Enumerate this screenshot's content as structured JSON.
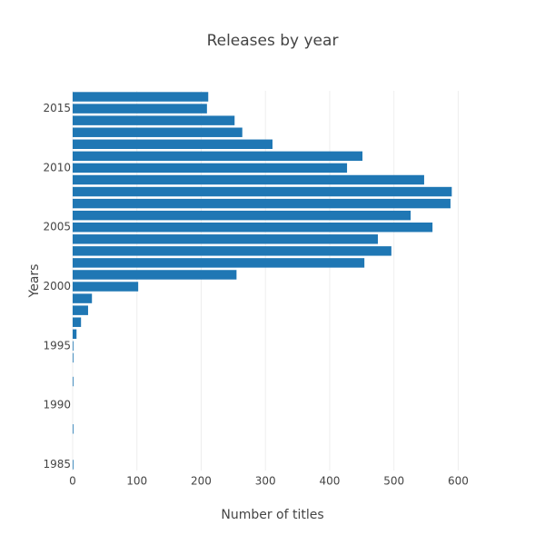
{
  "chart_data": {
    "type": "bar",
    "orientation": "horizontal",
    "title": "Releases by year",
    "x_label": "Number of titles",
    "y_label": "Years",
    "y": [
      1985,
      1988,
      1992,
      1994,
      1995,
      1996,
      1997,
      1998,
      1999,
      2000,
      2001,
      2002,
      2003,
      2004,
      2005,
      2006,
      2007,
      2008,
      2009,
      2010,
      2011,
      2012,
      2013,
      2014,
      2015,
      2016
    ],
    "values": [
      1,
      1,
      1,
      1,
      1,
      6,
      13,
      24,
      30,
      102,
      255,
      454,
      496,
      475,
      560,
      526,
      588,
      590,
      547,
      427,
      451,
      311,
      264,
      252,
      209,
      211
    ],
    "color": "#1f77b4",
    "xlim": [
      0,
      622
    ],
    "xticks": [
      0,
      100,
      200,
      300,
      400,
      500,
      600
    ],
    "ylim": [
      1984.5,
      2016.5
    ],
    "yticks": [
      1985,
      1990,
      1995,
      2000,
      2005,
      2010,
      2015
    ],
    "grid": true
  }
}
